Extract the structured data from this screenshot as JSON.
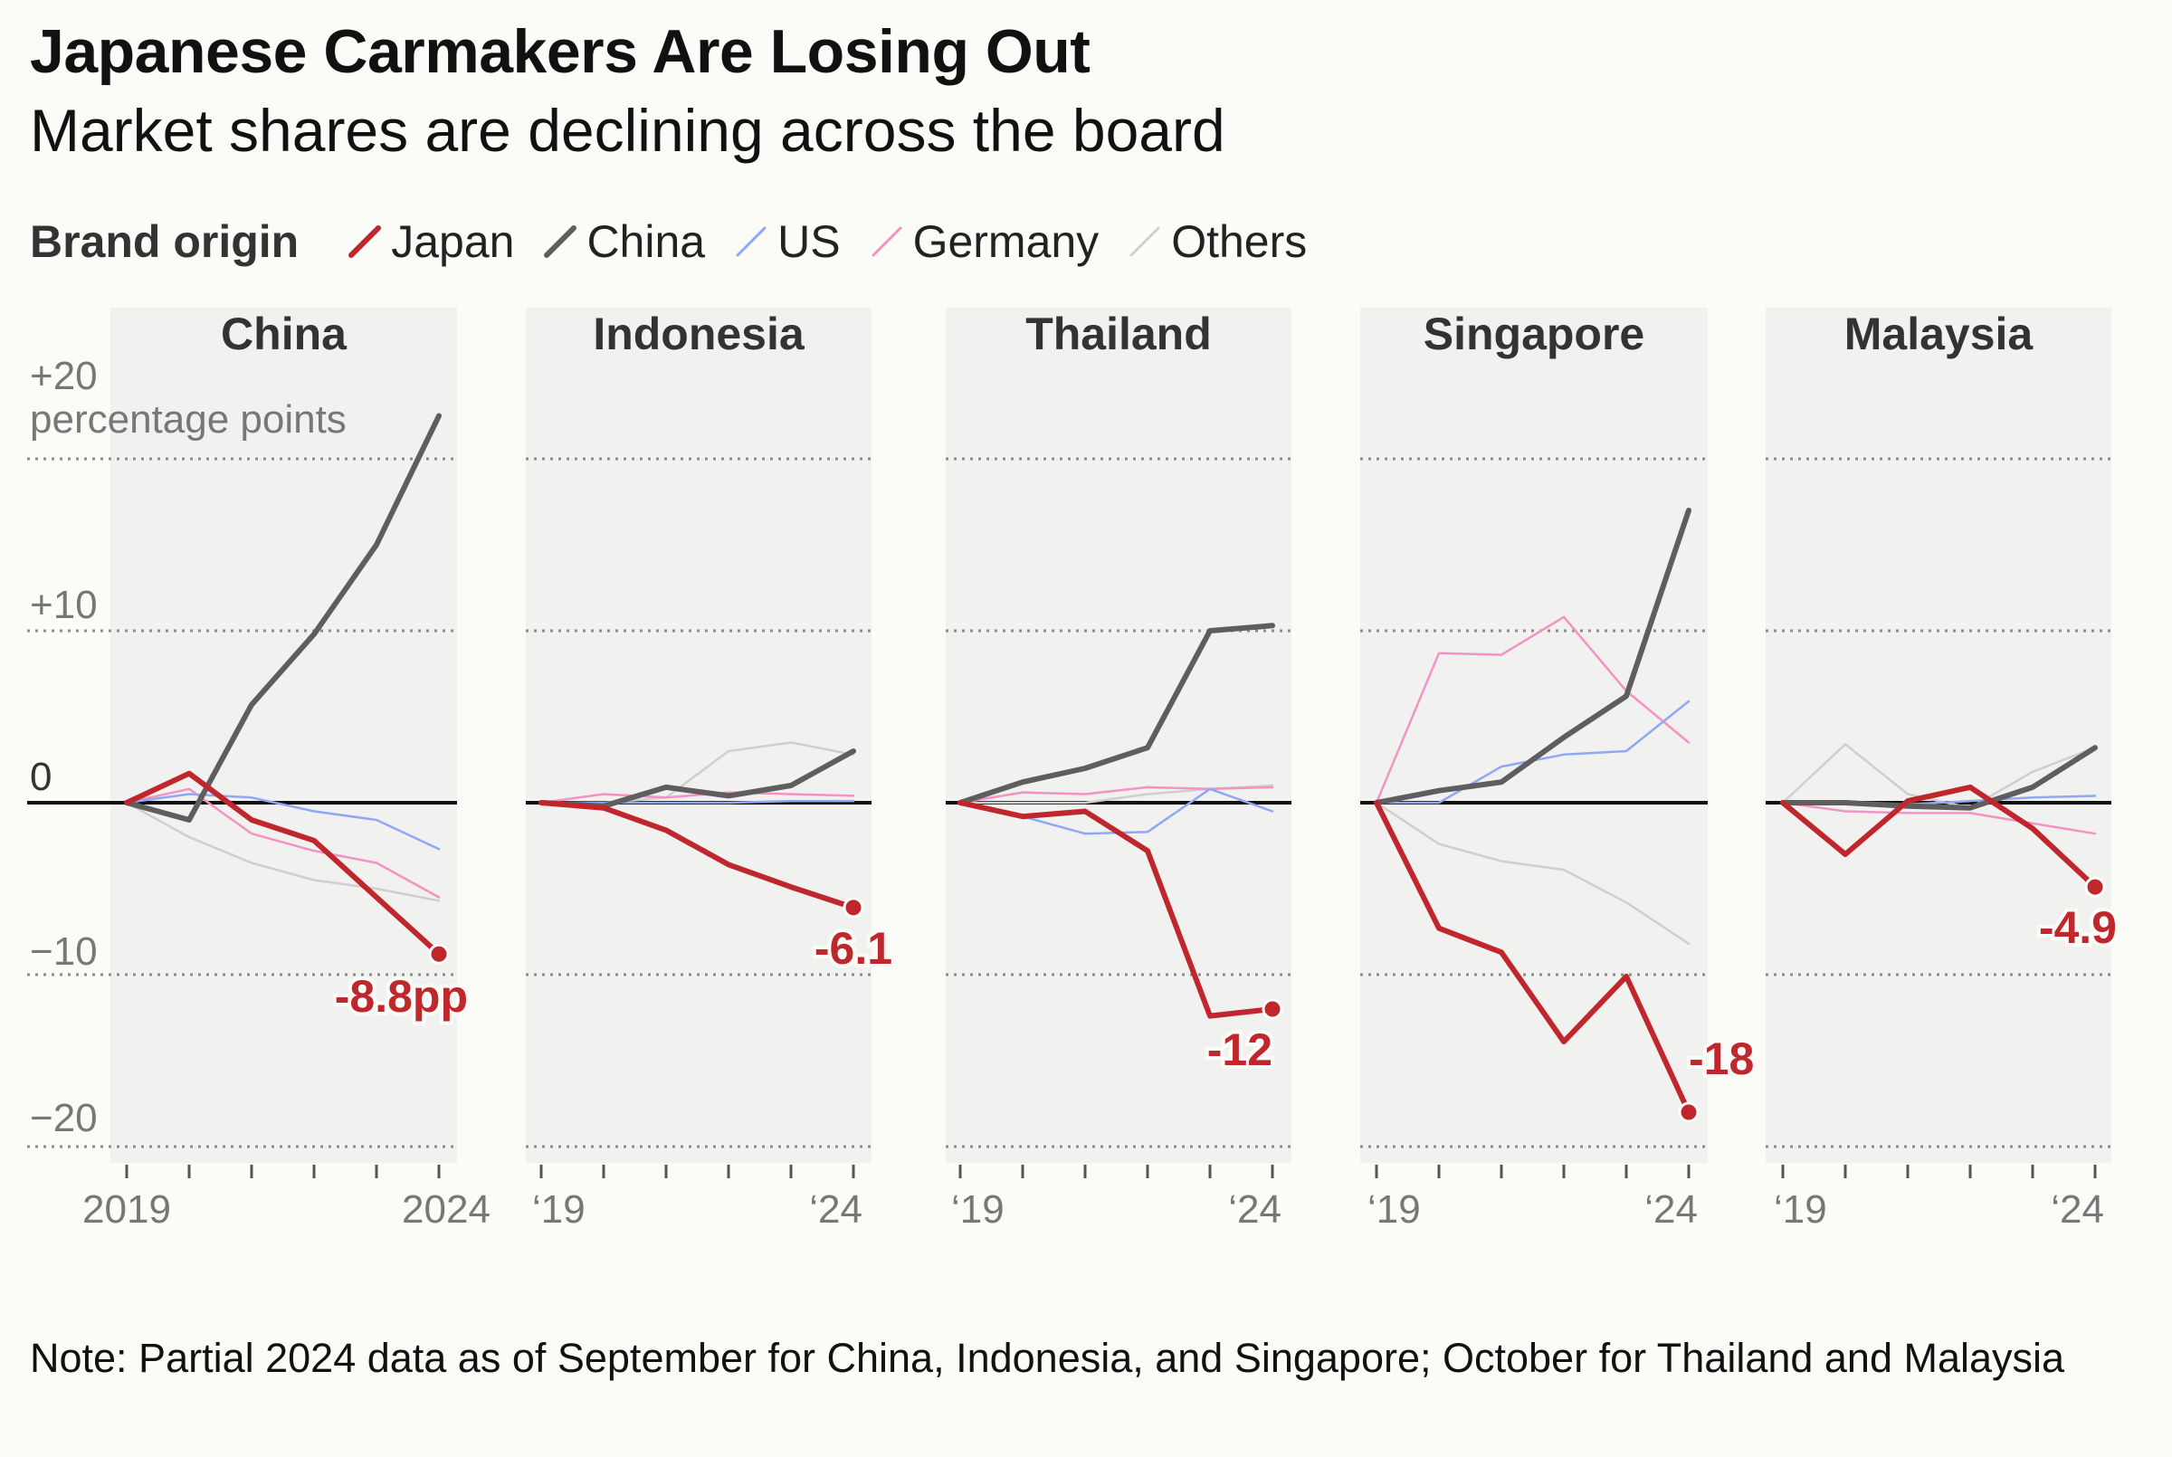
{
  "title": "Japanese Carmakers Are Losing Out",
  "subtitle": "Market shares are declining across the board",
  "legend": {
    "title": "Brand origin",
    "items": [
      {
        "label": "Japan",
        "color": "#c0272d"
      },
      {
        "label": "China",
        "color": "#5e5e5e"
      },
      {
        "label": "US",
        "color": "#8fa8f5"
      },
      {
        "label": "Germany",
        "color": "#f492c4"
      },
      {
        "label": "Others",
        "color": "#cfcfcf"
      }
    ]
  },
  "axis": {
    "top_label": "+20",
    "unit_label": "percentage points",
    "tick_labels": [
      "+10",
      "0",
      "−10",
      "−20"
    ]
  },
  "note": "Note: Partial 2024 data as of September for China, Indonesia, and Singapore; October for Thailand and Malaysia",
  "chart_data": {
    "type": "line",
    "x": [
      2019,
      2020,
      2021,
      2022,
      2023,
      2024
    ],
    "ylim": [
      -20,
      20
    ],
    "yticks": [
      -20,
      -10,
      0,
      10,
      20
    ],
    "panels": [
      {
        "name": "China",
        "x_tick_labels": [
          "2019",
          "2024"
        ],
        "end_label": "-8.8pp",
        "series": [
          {
            "name": "Others",
            "values": [
              0,
              -2,
              -3.5,
              -4.5,
              -5,
              -5.7
            ]
          },
          {
            "name": "Germany",
            "values": [
              0,
              0.8,
              -1.8,
              -2.8,
              -3.5,
              -5.5
            ]
          },
          {
            "name": "US",
            "values": [
              0,
              0.5,
              0.3,
              -0.5,
              -1,
              -2.7
            ]
          },
          {
            "name": "China",
            "values": [
              0,
              -1,
              5.7,
              9.8,
              15,
              22.5
            ]
          },
          {
            "name": "Japan",
            "values": [
              0,
              1.7,
              -1,
              -2.2,
              -5.5,
              -8.8
            ]
          }
        ]
      },
      {
        "name": "Indonesia",
        "x_tick_labels": [
          "‘19",
          "‘24"
        ],
        "end_label": "-6.1",
        "series": [
          {
            "name": "Others",
            "values": [
              0,
              0,
              0.3,
              3,
              3.5,
              2.8
            ]
          },
          {
            "name": "Germany",
            "values": [
              0,
              0.5,
              0.3,
              0.6,
              0.5,
              0.4
            ]
          },
          {
            "name": "US",
            "values": [
              0,
              0,
              0,
              0,
              0.1,
              0.1
            ]
          },
          {
            "name": "China",
            "values": [
              0,
              -0.2,
              0.9,
              0.4,
              1,
              3
            ]
          },
          {
            "name": "Japan",
            "values": [
              0,
              -0.3,
              -1.6,
              -3.6,
              -4.9,
              -6.1
            ]
          }
        ]
      },
      {
        "name": "Thailand",
        "x_tick_labels": [
          "‘19",
          "‘24"
        ],
        "end_label": "-12",
        "series": [
          {
            "name": "Others",
            "values": [
              0,
              0,
              0,
              0.5,
              0.8,
              1
            ]
          },
          {
            "name": "Germany",
            "values": [
              0,
              0.6,
              0.5,
              0.9,
              0.8,
              0.9
            ]
          },
          {
            "name": "US",
            "values": [
              0,
              -0.8,
              -1.8,
              -1.7,
              0.8,
              -0.5
            ]
          },
          {
            "name": "China",
            "values": [
              0,
              1.2,
              2,
              3.2,
              10,
              10.3
            ]
          },
          {
            "name": "Japan",
            "values": [
              0,
              -0.8,
              -0.5,
              -2.8,
              -12.4,
              -12
            ]
          }
        ]
      },
      {
        "name": "Singapore",
        "x_tick_labels": [
          "‘19",
          "‘24"
        ],
        "end_label": "-18",
        "series": [
          {
            "name": "Others",
            "values": [
              0,
              -2.4,
              -3.4,
              -3.9,
              -5.8,
              -8.2
            ]
          },
          {
            "name": "Germany",
            "values": [
              0,
              8.7,
              8.6,
              10.8,
              6.5,
              3.5
            ]
          },
          {
            "name": "US",
            "values": [
              0,
              0,
              2.1,
              2.8,
              3,
              5.9
            ]
          },
          {
            "name": "China",
            "values": [
              0,
              0.7,
              1.2,
              3.8,
              6.2,
              17
            ]
          },
          {
            "name": "Japan",
            "values": [
              0,
              -7.3,
              -8.7,
              -13.9,
              -10.1,
              -18
            ]
          }
        ]
      },
      {
        "name": "Malaysia",
        "x_tick_labels": [
          "‘19",
          "‘24"
        ],
        "end_label": "-4.9",
        "series": [
          {
            "name": "Others",
            "values": [
              0,
              3.4,
              0.5,
              -0.3,
              1.8,
              3.2
            ]
          },
          {
            "name": "Germany",
            "values": [
              0,
              -0.5,
              -0.6,
              -0.6,
              -1.2,
              -1.8
            ]
          },
          {
            "name": "US",
            "values": [
              0,
              0,
              -0.1,
              0.1,
              0.3,
              0.4
            ]
          },
          {
            "name": "China",
            "values": [
              0,
              0,
              -0.2,
              -0.3,
              0.9,
              3.2
            ]
          },
          {
            "name": "Japan",
            "values": [
              0,
              -3,
              0.1,
              0.9,
              -1.5,
              -4.9
            ]
          }
        ]
      }
    ]
  }
}
